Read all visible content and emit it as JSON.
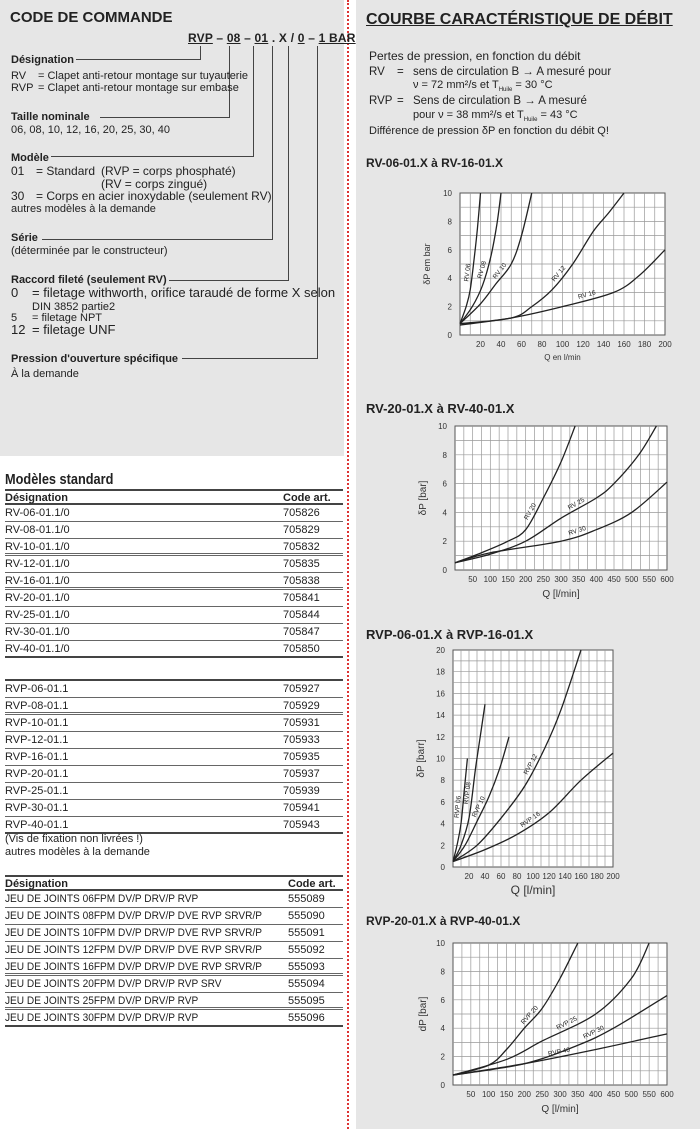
{
  "order_code": {
    "title": "CODE DE COMMANDE",
    "code_parts": [
      "RVP",
      "–",
      "08",
      "–",
      "01",
      ".",
      "X",
      "/",
      "0",
      "–",
      "1 BAR"
    ],
    "sections": {
      "designation": {
        "heading": "Désignation",
        "lines": [
          [
            "RV",
            "= Clapet anti-retour montage sur tuyauterie"
          ],
          [
            "RVP",
            "= Clapet anti-retour montage sur embase"
          ]
        ]
      },
      "taille": {
        "heading": "Taille nominale",
        "text": "06, 08, 10, 12, 16, 20, 25, 30, 40"
      },
      "modele": {
        "heading": "Modèle",
        "l1_code": "01",
        "l1_text": "= Standard",
        "l1_note": "(RVP = corps phosphaté)",
        "l2_note": "(RV = corps zingué)",
        "l3_code": "30",
        "l3_text": "= Corps en acier inoxydable (seulement RV)",
        "l4": "autres modèles à la demande"
      },
      "serie": {
        "heading": "Série",
        "text": "(déterminée par le constructeur)"
      },
      "raccord": {
        "heading": "Raccord fileté (seulement RV)",
        "lines": [
          [
            "0",
            "= filetage withworth, orifice taraudé de forme X selon"
          ],
          [
            "",
            "DIN 3852 partie2"
          ],
          [
            "5",
            "= filetage NPT"
          ],
          [
            "12",
            "= filetage UNF"
          ]
        ]
      },
      "pression": {
        "heading": "Pression d'ouverture spécifique",
        "text": "À la demande"
      }
    }
  },
  "standard_models": {
    "title": "Modèles standard",
    "headers": [
      "Désignation",
      "Code art."
    ],
    "rv_rows": [
      [
        "RV-06-01.1/0",
        "705826"
      ],
      [
        "RV-08-01.1/0",
        "705829"
      ],
      [
        "RV-10-01.1/0",
        "705832"
      ],
      [
        "RV-12-01.1/0",
        "705835"
      ],
      [
        "RV-16-01.1/0",
        "705838"
      ],
      [
        "RV-20-01.1/0",
        "705841"
      ],
      [
        "RV-25-01.1/0",
        "705844"
      ],
      [
        "RV-30-01.1/0",
        "705847"
      ],
      [
        "RV-40-01.1/0",
        "705850"
      ]
    ],
    "rvp_rows": [
      [
        "RVP-06-01.1",
        "705927"
      ],
      [
        "RVP-08-01.1",
        "705929"
      ],
      [
        "RVP-10-01.1",
        "705931"
      ],
      [
        "RVP-12-01.1",
        "705933"
      ],
      [
        "RVP-16-01.1",
        "705935"
      ],
      [
        "RVP-20-01.1",
        "705937"
      ],
      [
        "RVP-25-01.1",
        "705939"
      ],
      [
        "RVP-30-01.1",
        "705941"
      ],
      [
        "RVP-40-01.1",
        "705943"
      ]
    ],
    "note1": "(Vis de fixation non livrées !)",
    "note2": "autres modèles à la demande"
  },
  "seal_kits": {
    "headers": [
      "Désignation",
      "Code art."
    ],
    "rows": [
      [
        "JEU DE JOINTS 06FPM DV/P DRV/P RVP",
        "555089"
      ],
      [
        "JEU DE JOINTS 08FPM DV/P DRV/P DVE RVP SRVR/P",
        "555090"
      ],
      [
        "JEU DE JOINTS 10FPM DV/P DRV/P DVE RVP SRVR/P",
        "555091"
      ],
      [
        "JEU DE JOINTS 12FPM DV/P DRV/P DVE RVP SRVR/P",
        "555092"
      ],
      [
        "JEU DE JOINTS 16FPM DV/P DRV/P DVE RVP SRVR/P",
        "555093"
      ],
      [
        "JEU DE JOINTS 20FPM DV/P DRV/P RVP SRV",
        "555094"
      ],
      [
        "JEU DE JOINTS 25FPM DV/P DRV/P RVP",
        "555095"
      ],
      [
        "JEU DE JOINTS 30FPM DV/P DRV/P RVP",
        "555096"
      ]
    ]
  },
  "flow_curve": {
    "title": "COURBE CARACTÉRISTIQUE DE DÉBIT",
    "intro": "Pertes de pression, en fonction du débit",
    "rv_label": "RV",
    "rv_eq": "=",
    "rv_text1": "sens de circulation B → A mesuré pour",
    "rv_text2_a": "ν = 72 mm²/s et T",
    "rv_text2_sub": "Huile",
    "rv_text2_b": " = 30 °C",
    "rvp_label": "RVP",
    "rvp_eq": "=",
    "rvp_text1": "Sens de circulation B → A mesuré",
    "rvp_text2_a": "pour ν = 38 mm²/s et T",
    "rvp_text2_sub": "Huile",
    "rvp_text2_b": " = 43 °C",
    "note": "Différence de pression δP en fonction du débit Q!"
  },
  "chart_data": [
    {
      "type": "line",
      "title": "RV-06-01.X à RV-16-01.X",
      "xlabel": "Q en l/min",
      "ylabel": "δP em bar",
      "xlim": [
        0,
        200
      ],
      "ylim": [
        0,
        10
      ],
      "xticks": [
        20,
        40,
        60,
        80,
        100,
        120,
        140,
        160,
        180,
        200
      ],
      "yticks": [
        0,
        2,
        4,
        6,
        8,
        10
      ],
      "grid": true,
      "series": [
        {
          "name": "RV 06",
          "points": [
            [
              0,
              0.8
            ],
            [
              6,
              2
            ],
            [
              10,
              3.2
            ],
            [
              14,
              5.5
            ],
            [
              17,
              7.5
            ],
            [
              20,
              10
            ]
          ]
        },
        {
          "name": "RV 08",
          "points": [
            [
              0,
              0.8
            ],
            [
              12,
              2
            ],
            [
              22,
              3.5
            ],
            [
              30,
              5.5
            ],
            [
              36,
              7.8
            ],
            [
              40,
              10
            ]
          ]
        },
        {
          "name": "RV 10",
          "points": [
            [
              0,
              0.8
            ],
            [
              20,
              2.2
            ],
            [
              35,
              3.6
            ],
            [
              50,
              5
            ],
            [
              60,
              7
            ],
            [
              70,
              10
            ]
          ]
        },
        {
          "name": "RV 12",
          "points": [
            [
              0,
              0.8
            ],
            [
              50,
              1.2
            ],
            [
              70,
              2
            ],
            [
              90,
              3.2
            ],
            [
              110,
              5
            ],
            [
              130,
              7.3
            ],
            [
              145,
              8.6
            ],
            [
              160,
              10
            ]
          ]
        },
        {
          "name": "RV 16",
          "points": [
            [
              0,
              0.7
            ],
            [
              50,
              1.2
            ],
            [
              100,
              2
            ],
            [
              150,
              3
            ],
            [
              175,
              4.2
            ],
            [
              200,
              6
            ]
          ]
        }
      ]
    },
    {
      "type": "line",
      "title": "RV-20-01.X à RV-40-01.X",
      "xlabel": "Q [l/min]",
      "ylabel": "δP [bar]",
      "xlim": [
        0,
        600
      ],
      "ylim": [
        0,
        10
      ],
      "xticks": [
        50,
        100,
        150,
        200,
        250,
        300,
        350,
        400,
        450,
        500,
        550,
        600
      ],
      "yticks": [
        0,
        2,
        4,
        6,
        8,
        10
      ],
      "grid": true,
      "series": [
        {
          "name": "RV 20",
          "points": [
            [
              0,
              0.5
            ],
            [
              75,
              1.2
            ],
            [
              150,
              2
            ],
            [
              200,
              2.8
            ],
            [
              250,
              5
            ],
            [
              300,
              7.5
            ],
            [
              340,
              10
            ]
          ]
        },
        {
          "name": "RV 25",
          "points": [
            [
              0,
              0.5
            ],
            [
              100,
              1.1
            ],
            [
              200,
              2
            ],
            [
              300,
              3.6
            ],
            [
              400,
              5
            ],
            [
              450,
              6
            ],
            [
              520,
              8
            ],
            [
              570,
              10
            ]
          ]
        },
        {
          "name": "RV 30",
          "points": [
            [
              0,
              0.5
            ],
            [
              100,
              1.2
            ],
            [
              300,
              2
            ],
            [
              400,
              2.8
            ],
            [
              500,
              4
            ],
            [
              600,
              6.1
            ]
          ]
        }
      ]
    },
    {
      "type": "line",
      "title": "RVP-06-01.X à RVP-16-01.X",
      "xlabel": "Q [l/min]",
      "ylabel": "δP [barr]",
      "xlim": [
        0,
        200
      ],
      "ylim": [
        0,
        20
      ],
      "xticks": [
        20,
        40,
        60,
        80,
        100,
        120,
        140,
        160,
        180,
        200
      ],
      "yticks": [
        0,
        2,
        4,
        6,
        8,
        10,
        12,
        14,
        16,
        18,
        20
      ],
      "grid": true,
      "series": [
        {
          "name": "RVP 06",
          "points": [
            [
              0,
              0.5
            ],
            [
              5,
              2
            ],
            [
              10,
              4
            ],
            [
              14,
              7
            ],
            [
              18,
              10
            ]
          ]
        },
        {
          "name": "RVP 08",
          "points": [
            [
              0,
              0.5
            ],
            [
              10,
              2
            ],
            [
              20,
              4.5
            ],
            [
              28,
              9
            ],
            [
              34,
              12
            ],
            [
              40,
              15
            ]
          ]
        },
        {
          "name": "RVP 10",
          "points": [
            [
              0,
              0.5
            ],
            [
              15,
              2
            ],
            [
              30,
              4.2
            ],
            [
              45,
              6.5
            ],
            [
              58,
              9
            ],
            [
              70,
              12
            ]
          ]
        },
        {
          "name": "RVP 12",
          "points": [
            [
              0,
              0.5
            ],
            [
              30,
              2
            ],
            [
              60,
              4.5
            ],
            [
              90,
              7.5
            ],
            [
              115,
              11
            ],
            [
              135,
              14.5
            ],
            [
              160,
              20
            ]
          ]
        },
        {
          "name": "RVP 16",
          "points": [
            [
              0,
              0.5
            ],
            [
              40,
              1.6
            ],
            [
              80,
              3
            ],
            [
              120,
              5
            ],
            [
              160,
              8
            ],
            [
              200,
              10.5
            ]
          ]
        }
      ]
    },
    {
      "type": "line",
      "title": "RVP-20-01.X à RVP-40-01.X",
      "xlabel": "Q [l/min]",
      "ylabel": "dP [bar]",
      "xlim": [
        0,
        600
      ],
      "ylim": [
        0,
        10
      ],
      "xticks": [
        50,
        100,
        150,
        200,
        250,
        300,
        350,
        400,
        450,
        500,
        550,
        600
      ],
      "yticks": [
        0,
        2,
        4,
        6,
        8,
        10
      ],
      "grid": true,
      "series": [
        {
          "name": "RVP 20",
          "points": [
            [
              0,
              0.7
            ],
            [
              100,
              1.4
            ],
            [
              150,
              2.5
            ],
            [
              200,
              4
            ],
            [
              250,
              5.4
            ],
            [
              300,
              7.5
            ],
            [
              350,
              10
            ]
          ]
        },
        {
          "name": "RVP 25",
          "points": [
            [
              0,
              0.7
            ],
            [
              150,
              1.8
            ],
            [
              250,
              3.1
            ],
            [
              400,
              5
            ],
            [
              500,
              7.5
            ],
            [
              550,
              10
            ]
          ]
        },
        {
          "name": "RVP 30",
          "points": [
            [
              0,
              0.7
            ],
            [
              200,
              1.5
            ],
            [
              350,
              2.8
            ],
            [
              450,
              4
            ],
            [
              600,
              6.3
            ]
          ]
        },
        {
          "name": "RVP 40",
          "points": [
            [
              0,
              0.7
            ],
            [
              200,
              1.5
            ],
            [
              400,
              2.5
            ],
            [
              600,
              3.6
            ]
          ]
        }
      ]
    }
  ]
}
